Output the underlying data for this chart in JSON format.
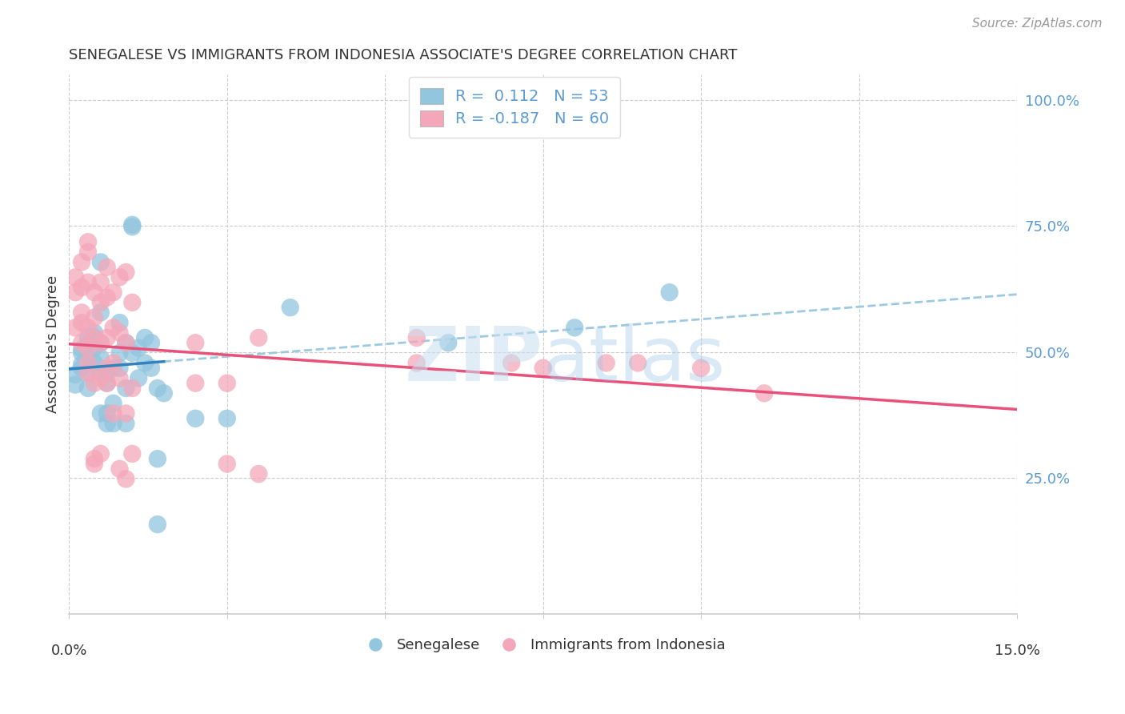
{
  "title": "SENEGALESE VS IMMIGRANTS FROM INDONESIA ASSOCIATE'S DEGREE CORRELATION CHART",
  "source": "Source: ZipAtlas.com",
  "ylabel": "Associate's Degree",
  "legend_blue_R": "0.112",
  "legend_blue_N": "53",
  "legend_pink_R": "-0.187",
  "legend_pink_N": "60",
  "legend_label_blue": "Senegalese",
  "legend_label_pink": "Immigrants from Indonesia",
  "blue_color": "#92c5de",
  "pink_color": "#f4a7b9",
  "blue_line_color": "#3182bd",
  "pink_line_color": "#e8517a",
  "dashed_line_color": "#92c5de",
  "watermark": "ZIPatlas",
  "blue_scatter": [
    [
      0.001,
      0.455
    ],
    [
      0.001,
      0.435
    ],
    [
      0.002,
      0.475
    ],
    [
      0.002,
      0.505
    ],
    [
      0.002,
      0.468
    ],
    [
      0.002,
      0.498
    ],
    [
      0.003,
      0.488
    ],
    [
      0.003,
      0.515
    ],
    [
      0.003,
      0.528
    ],
    [
      0.003,
      0.458
    ],
    [
      0.003,
      0.428
    ],
    [
      0.004,
      0.508
    ],
    [
      0.004,
      0.538
    ],
    [
      0.004,
      0.478
    ],
    [
      0.004,
      0.528
    ],
    [
      0.005,
      0.678
    ],
    [
      0.005,
      0.518
    ],
    [
      0.005,
      0.578
    ],
    [
      0.005,
      0.488
    ],
    [
      0.005,
      0.458
    ],
    [
      0.005,
      0.378
    ],
    [
      0.006,
      0.458
    ],
    [
      0.006,
      0.438
    ],
    [
      0.006,
      0.378
    ],
    [
      0.006,
      0.358
    ],
    [
      0.007,
      0.468
    ],
    [
      0.007,
      0.398
    ],
    [
      0.007,
      0.358
    ],
    [
      0.008,
      0.498
    ],
    [
      0.008,
      0.558
    ],
    [
      0.008,
      0.468
    ],
    [
      0.009,
      0.518
    ],
    [
      0.009,
      0.428
    ],
    [
      0.009,
      0.358
    ],
    [
      0.01,
      0.752
    ],
    [
      0.01,
      0.748
    ],
    [
      0.01,
      0.498
    ],
    [
      0.011,
      0.508
    ],
    [
      0.011,
      0.448
    ],
    [
      0.012,
      0.528
    ],
    [
      0.012,
      0.478
    ],
    [
      0.013,
      0.518
    ],
    [
      0.013,
      0.468
    ],
    [
      0.014,
      0.428
    ],
    [
      0.014,
      0.288
    ],
    [
      0.014,
      0.158
    ],
    [
      0.015,
      0.418
    ],
    [
      0.02,
      0.368
    ],
    [
      0.025,
      0.368
    ],
    [
      0.035,
      0.588
    ],
    [
      0.06,
      0.518
    ],
    [
      0.08,
      0.548
    ],
    [
      0.095,
      0.618
    ]
  ],
  "pink_scatter": [
    [
      0.001,
      0.618
    ],
    [
      0.001,
      0.648
    ],
    [
      0.001,
      0.548
    ],
    [
      0.002,
      0.678
    ],
    [
      0.002,
      0.578
    ],
    [
      0.002,
      0.628
    ],
    [
      0.002,
      0.558
    ],
    [
      0.002,
      0.518
    ],
    [
      0.003,
      0.718
    ],
    [
      0.003,
      0.698
    ],
    [
      0.003,
      0.638
    ],
    [
      0.003,
      0.548
    ],
    [
      0.003,
      0.508
    ],
    [
      0.003,
      0.478
    ],
    [
      0.003,
      0.458
    ],
    [
      0.004,
      0.618
    ],
    [
      0.004,
      0.568
    ],
    [
      0.004,
      0.528
    ],
    [
      0.004,
      0.438
    ],
    [
      0.004,
      0.288
    ],
    [
      0.004,
      0.278
    ],
    [
      0.005,
      0.638
    ],
    [
      0.005,
      0.598
    ],
    [
      0.005,
      0.518
    ],
    [
      0.005,
      0.448
    ],
    [
      0.005,
      0.298
    ],
    [
      0.006,
      0.668
    ],
    [
      0.006,
      0.608
    ],
    [
      0.006,
      0.528
    ],
    [
      0.006,
      0.468
    ],
    [
      0.006,
      0.438
    ],
    [
      0.007,
      0.618
    ],
    [
      0.007,
      0.548
    ],
    [
      0.007,
      0.478
    ],
    [
      0.007,
      0.378
    ],
    [
      0.008,
      0.648
    ],
    [
      0.008,
      0.538
    ],
    [
      0.008,
      0.448
    ],
    [
      0.008,
      0.268
    ],
    [
      0.009,
      0.658
    ],
    [
      0.009,
      0.518
    ],
    [
      0.009,
      0.378
    ],
    [
      0.009,
      0.248
    ],
    [
      0.01,
      0.598
    ],
    [
      0.01,
      0.428
    ],
    [
      0.01,
      0.298
    ],
    [
      0.02,
      0.518
    ],
    [
      0.02,
      0.438
    ],
    [
      0.025,
      0.438
    ],
    [
      0.025,
      0.278
    ],
    [
      0.03,
      0.528
    ],
    [
      0.03,
      0.258
    ],
    [
      0.055,
      0.528
    ],
    [
      0.055,
      0.478
    ],
    [
      0.07,
      0.478
    ],
    [
      0.075,
      0.468
    ],
    [
      0.085,
      0.478
    ],
    [
      0.09,
      0.478
    ],
    [
      0.1,
      0.468
    ],
    [
      0.11,
      0.418
    ]
  ],
  "blue_line_xlim": [
    0.0,
    0.015
  ],
  "xlim": [
    0.0,
    0.15
  ],
  "ylim": [
    -0.02,
    1.05
  ],
  "xticks": [
    0.0,
    0.025,
    0.05,
    0.075,
    0.1,
    0.125,
    0.15
  ],
  "ytick_right": [
    1.0,
    0.75,
    0.5,
    0.25
  ],
  "ytick_right_labels": [
    "100.0%",
    "75.0%",
    "50.0%",
    "25.0%"
  ],
  "ytick_right_color": "#5b9bd5",
  "axis_color": "#cccccc",
  "title_fontsize": 13,
  "source_fontsize": 11,
  "tick_fontsize": 13,
  "legend_fontsize": 14
}
